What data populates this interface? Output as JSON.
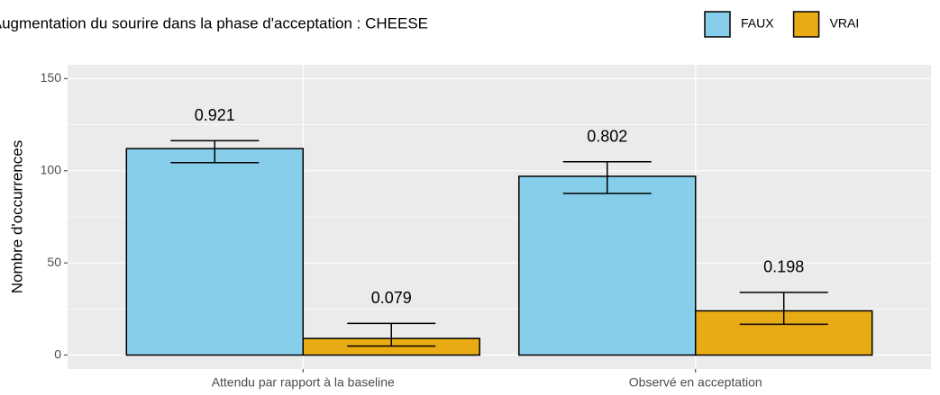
{
  "chart_data": {
    "type": "bar",
    "legend_title": "Augmentation du sourire dans la phase d'acceptation : CHEESE",
    "ylabel": "Nombre d'occurrences",
    "categories": [
      "Attendu par rapport à la baseline",
      "Observé en acceptation"
    ],
    "series": [
      {
        "name": "FAUX",
        "color": "#87ceeb",
        "values": [
          112,
          97
        ],
        "error_lower": [
          104.4,
          87.7
        ],
        "error_upper": [
          116.3,
          104.9
        ],
        "proportions": [
          0.921,
          0.802
        ]
      },
      {
        "name": "VRAI",
        "color": "#e8ab14",
        "values": [
          9,
          24
        ],
        "error_lower": [
          4.9,
          16.7
        ],
        "error_upper": [
          17.2,
          34
        ],
        "proportions": [
          0.079,
          0.198
        ]
      }
    ],
    "ylim": [
      -7.5,
      157.5
    ],
    "yticks": [
      0,
      50,
      100,
      150
    ],
    "grid": true,
    "legend_position": "top"
  }
}
